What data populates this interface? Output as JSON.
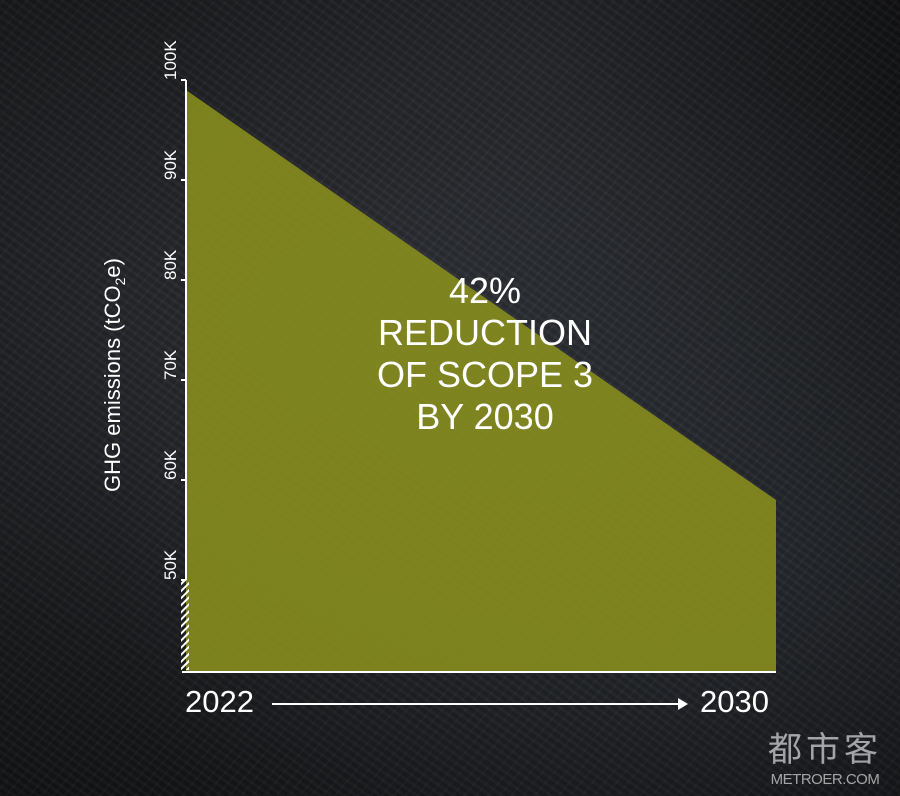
{
  "chart_data": {
    "type": "area",
    "x": [
      "2022",
      "2030"
    ],
    "values": [
      99000,
      58000
    ],
    "ylabel": "GHG emissions (tCO2e)",
    "ylabel_parts": {
      "main": "GHG emissions (tCO",
      "sub": "2",
      "end": "e)"
    },
    "yticks": [
      "50K",
      "60K",
      "70K",
      "80K",
      "90K",
      "100K"
    ],
    "ytick_values": [
      50000,
      60000,
      70000,
      80000,
      90000,
      100000
    ],
    "ylim": [
      40800,
      100000
    ],
    "axis_break_below": 50000,
    "xlabels": {
      "start": "2022",
      "end": "2030"
    },
    "annotation": [
      "42%",
      "REDUCTION",
      "OF SCOPE 3",
      "BY 2030"
    ],
    "fill_color": "#8a8f1e",
    "grid": false
  },
  "watermark": {
    "cn": "都市客",
    "en": "METROER.COM"
  }
}
